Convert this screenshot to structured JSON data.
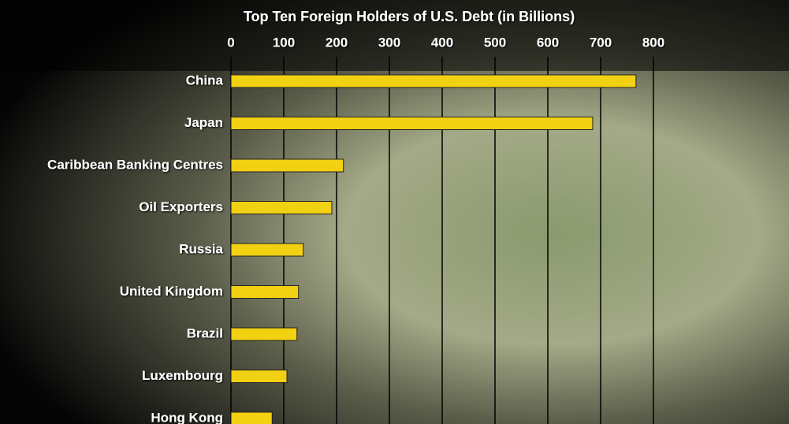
{
  "chart_data": {
    "type": "bar",
    "orientation": "horizontal",
    "title": "Top Ten Foreign Holders of U.S. Debt (in Billions)",
    "categories": [
      "China",
      "Japan",
      "Caribbean Banking Centres",
      "Oil Exporters",
      "Russia",
      "United Kingdom",
      "Brazil",
      "Luxembourg",
      "Hong Kong"
    ],
    "values": [
      767,
      685,
      213,
      191,
      137,
      128,
      125,
      106,
      78
    ],
    "color": "#f2d012",
    "xlim": [
      0,
      800
    ],
    "xticks": [
      0,
      100,
      200,
      300,
      400,
      500,
      600,
      700,
      800
    ],
    "grid": true
  }
}
